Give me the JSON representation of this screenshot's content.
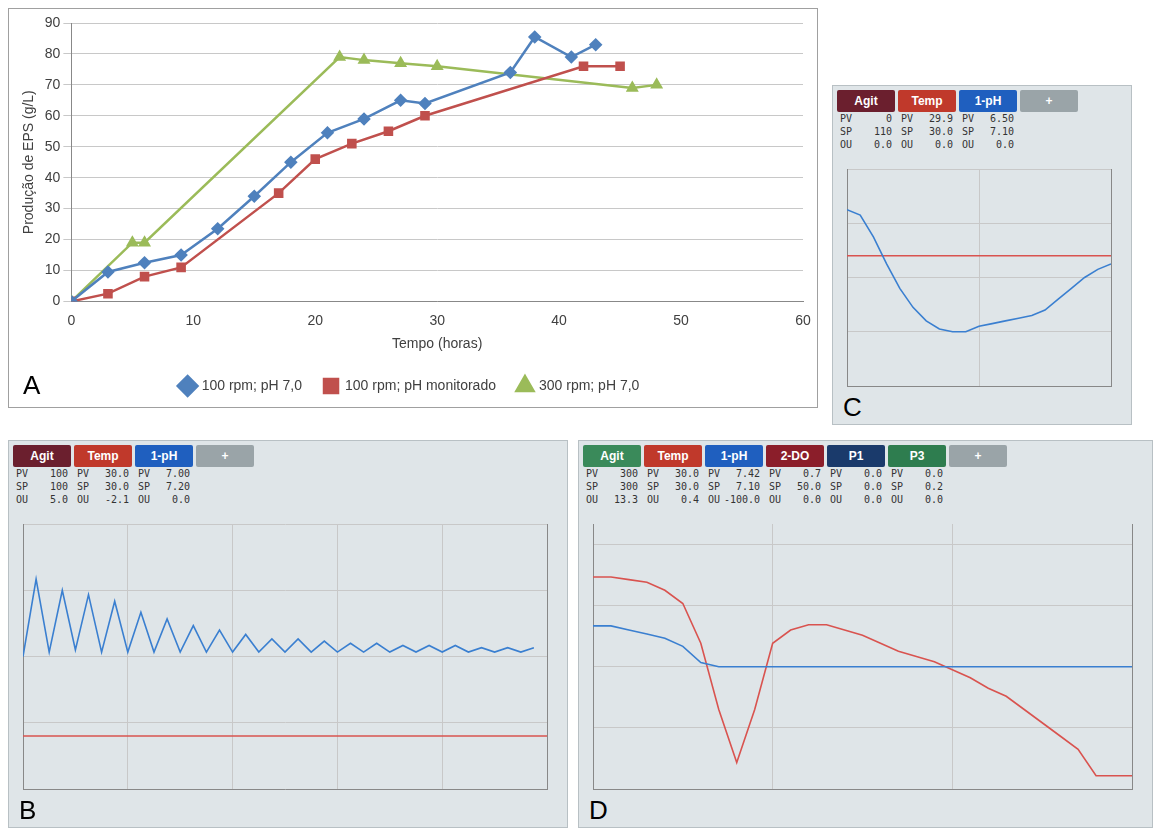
{
  "chart_data": [
    {
      "panel": "A",
      "type": "line",
      "x_label": "Tempo (horas)",
      "y_label": "Produção de EPS (g/L)",
      "xlim": [
        0,
        60
      ],
      "xticks": [
        0,
        10,
        20,
        30,
        40,
        50,
        60
      ],
      "ylim": [
        0,
        90
      ],
      "yticks": [
        0,
        10,
        20,
        30,
        40,
        50,
        60,
        70,
        80,
        90
      ],
      "grid": "y",
      "legend": "bottom",
      "series": [
        {
          "name": "100 rpm; pH 7,0",
          "color": "#4f81bd",
          "marker": "diamond",
          "x": [
            0,
            3,
            6,
            9,
            12,
            15,
            18,
            21,
            24,
            27,
            29,
            36,
            38,
            41,
            43
          ],
          "values": [
            0,
            9.5,
            12.5,
            15,
            23.5,
            34,
            45,
            54.5,
            59,
            65,
            64,
            74,
            85.5,
            79,
            83
          ]
        },
        {
          "name": "100 rpm; pH monitorado",
          "color": "#c0504d",
          "marker": "square",
          "x": [
            0,
            3,
            6,
            9,
            17,
            20,
            23,
            26,
            29,
            42,
            45
          ],
          "values": [
            0,
            2.5,
            8,
            11,
            35,
            46,
            51,
            55,
            60,
            76,
            76
          ]
        },
        {
          "name": "300 rpm; pH 7,0",
          "color": "#9bbb59",
          "marker": "triangle",
          "x": [
            0,
            5,
            6,
            22,
            24,
            27,
            30,
            46,
            48
          ],
          "values": [
            0,
            19,
            19,
            79,
            78,
            77,
            76,
            69,
            70
          ]
        }
      ]
    },
    {
      "panel": "C",
      "type": "line",
      "tabs": [
        {
          "name": "Agit",
          "color": "#6b1f2e",
          "rows": [
            [
              "PV",
              "0"
            ],
            [
              "SP",
              "110"
            ],
            [
              "OU",
              "0.0"
            ]
          ]
        },
        {
          "name": "Temp",
          "color": "#c0392b",
          "rows": [
            [
              "PV",
              "29.9"
            ],
            [
              "SP",
              "30.0"
            ],
            [
              "OU",
              "0.0"
            ]
          ]
        },
        {
          "name": "1-pH",
          "color": "#1f5fbf",
          "rows": [
            [
              "PV",
              "6.50"
            ],
            [
              "SP",
              "7.10"
            ],
            [
              "OU",
              "0.0"
            ]
          ]
        },
        {
          "name": "+",
          "color": "#9aa4a8",
          "rows": []
        }
      ],
      "tick_labels": false,
      "grid": true,
      "xlim": [
        0,
        20
      ],
      "xticks": [
        0,
        10,
        20
      ],
      "ylim": [
        6.3,
        7.1
      ],
      "yticks": [
        6.3,
        6.5,
        6.7,
        6.9,
        7.1
      ],
      "y2lim": [
        29.4,
        30.4
      ],
      "y2ticks": [
        29.4,
        30.4
      ],
      "series": [
        {
          "name": "1-pH",
          "color": "#3a7fd0",
          "axis": "y",
          "x": [
            0,
            1,
            2,
            3,
            4,
            5,
            6,
            7,
            8,
            9,
            10,
            11,
            12,
            13,
            14,
            15,
            16,
            17,
            18,
            19,
            20
          ],
          "values": [
            6.95,
            6.93,
            6.85,
            6.75,
            6.66,
            6.59,
            6.54,
            6.51,
            6.5,
            6.5,
            6.52,
            6.53,
            6.54,
            6.55,
            6.56,
            6.58,
            6.62,
            6.66,
            6.7,
            6.73,
            6.75
          ]
        },
        {
          "name": "Temp",
          "color": "#d9534f",
          "axis": "y2",
          "x": [
            0,
            20
          ],
          "values": [
            30.0,
            30.0
          ]
        }
      ]
    },
    {
      "panel": "B",
      "type": "line",
      "tabs": [
        {
          "name": "Agit",
          "color": "#6b1f2e",
          "rows": [
            [
              "PV",
              "100"
            ],
            [
              "SP",
              "100"
            ],
            [
              "OU",
              "5.0"
            ]
          ]
        },
        {
          "name": "Temp",
          "color": "#c0392b",
          "rows": [
            [
              "PV",
              "30.0"
            ],
            [
              "SP",
              "30.0"
            ],
            [
              "OU",
              "-2.1"
            ]
          ]
        },
        {
          "name": "1-pH",
          "color": "#1f5fbf",
          "rows": [
            [
              "PV",
              "7.00"
            ],
            [
              "SP",
              "7.20"
            ],
            [
              "OU",
              "0.0"
            ]
          ]
        },
        {
          "name": "+",
          "color": "#9aa4a8",
          "rows": []
        }
      ],
      "tick_labels": false,
      "grid": true,
      "xlim": [
        0,
        40
      ],
      "xticks": [
        0,
        8,
        16,
        24,
        32,
        40
      ],
      "ylim": [
        6.4,
        7.6
      ],
      "yticks": [
        6.4,
        6.7,
        7.0,
        7.3,
        7.6
      ],
      "y2lim": [
        29.5,
        32
      ],
      "y2ticks": [
        29.5,
        32
      ],
      "series": [
        {
          "name": "1-pH",
          "color": "#3a7fd0",
          "axis": "y",
          "x": [
            0,
            1,
            2,
            3,
            4,
            5,
            6,
            7,
            8,
            9,
            10,
            11,
            12,
            13,
            14,
            15,
            16,
            17,
            18,
            19,
            20,
            21,
            22,
            23,
            24,
            25,
            26,
            27,
            28,
            29,
            30,
            31,
            32,
            33,
            34,
            35,
            36,
            37,
            38,
            39
          ],
          "values": [
            7.0,
            7.35,
            7.02,
            7.3,
            7.03,
            7.28,
            7.02,
            7.25,
            7.02,
            7.2,
            7.02,
            7.17,
            7.02,
            7.14,
            7.02,
            7.12,
            7.02,
            7.1,
            7.02,
            7.08,
            7.02,
            7.08,
            7.02,
            7.07,
            7.02,
            7.06,
            7.02,
            7.06,
            7.02,
            7.05,
            7.02,
            7.05,
            7.02,
            7.05,
            7.02,
            7.04,
            7.02,
            7.04,
            7.02,
            7.04
          ]
        },
        {
          "name": "Temp",
          "color": "#d9534f",
          "axis": "y2",
          "x": [
            0,
            40
          ],
          "values": [
            30.0,
            30.0
          ]
        }
      ]
    },
    {
      "panel": "D",
      "type": "line",
      "tabs": [
        {
          "name": "Agit",
          "color": "#3a8a5a",
          "rows": [
            [
              "PV",
              "300"
            ],
            [
              "SP",
              "300"
            ],
            [
              "OU",
              "13.3"
            ]
          ]
        },
        {
          "name": "Temp",
          "color": "#c0392b",
          "rows": [
            [
              "PV",
              "30.0"
            ],
            [
              "SP",
              "30.0"
            ],
            [
              "OU",
              "0.4"
            ]
          ]
        },
        {
          "name": "1-pH",
          "color": "#1f5fbf",
          "rows": [
            [
              "PV",
              "7.42"
            ],
            [
              "SP",
              "7.10"
            ],
            [
              "OU",
              "-100.0"
            ]
          ]
        },
        {
          "name": "2-DO",
          "color": "#8b1e2a",
          "rows": [
            [
              "PV",
              "0.7"
            ],
            [
              "SP",
              "50.0"
            ],
            [
              "OU",
              "0.0"
            ]
          ]
        },
        {
          "name": "P1",
          "color": "#1a3a6b",
          "rows": [
            [
              "PV",
              "0.0"
            ],
            [
              "SP",
              "0.0"
            ],
            [
              "OU",
              "0.0"
            ]
          ]
        },
        {
          "name": "P3",
          "color": "#2e7d4f",
          "rows": [
            [
              "PV",
              "0.0"
            ],
            [
              "SP",
              "0.2"
            ],
            [
              "OU",
              "0.0"
            ]
          ]
        },
        {
          "name": "+",
          "color": "#9aa4a8",
          "rows": []
        }
      ],
      "tick_labels": false,
      "grid": true,
      "xlim": [
        0,
        30
      ],
      "xticks": [
        0,
        10,
        20,
        30
      ],
      "ylim": [
        6.5,
        7.8
      ],
      "yticks": [
        6.5,
        6.8,
        7.1,
        7.4,
        7.7
      ],
      "y2lim": [
        0,
        100
      ],
      "y2ticks": [
        0,
        100
      ],
      "series": [
        {
          "name": "1-pH",
          "color": "#3a7fd0",
          "axis": "y",
          "x": [
            0,
            1,
            2,
            3,
            4,
            5,
            6,
            7,
            8,
            9,
            10,
            12,
            14,
            16,
            18,
            20,
            22,
            24,
            26,
            28,
            30
          ],
          "values": [
            7.3,
            7.3,
            7.28,
            7.26,
            7.24,
            7.2,
            7.12,
            7.1,
            7.1,
            7.1,
            7.1,
            7.1,
            7.1,
            7.1,
            7.1,
            7.1,
            7.1,
            7.1,
            7.1,
            7.1,
            7.1
          ]
        },
        {
          "name": "2-DO",
          "color": "#d9534f",
          "axis": "y2",
          "x": [
            0,
            1,
            2,
            3,
            4,
            5,
            6,
            7,
            8,
            9,
            10,
            11,
            12,
            13,
            14,
            15,
            16,
            17,
            18,
            19,
            20,
            21,
            22,
            23,
            24,
            25,
            26,
            27,
            28,
            29,
            30
          ],
          "values": [
            80,
            80,
            79,
            78,
            75,
            70,
            55,
            30,
            10,
            30,
            55,
            60,
            62,
            62,
            60,
            58,
            55,
            52,
            50,
            48,
            45,
            42,
            38,
            35,
            30,
            25,
            20,
            15,
            5,
            5,
            5
          ]
        }
      ]
    }
  ]
}
